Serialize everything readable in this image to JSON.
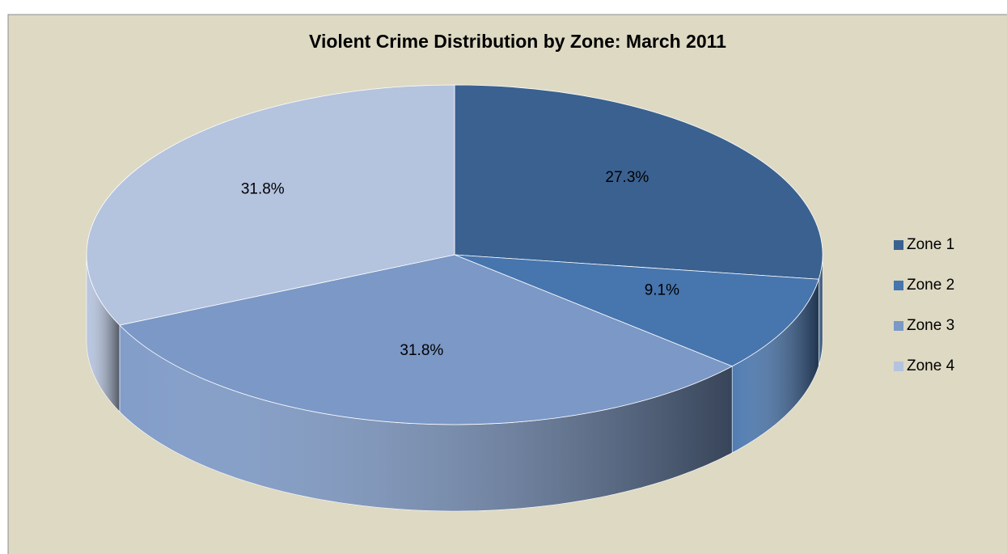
{
  "chart_data": {
    "type": "pie",
    "title": "Violent Crime Distribution by Zone:  March 2011",
    "categories": [
      "Zone 1",
      "Zone 2",
      "Zone 3",
      "Zone 4"
    ],
    "values": [
      27.3,
      9.1,
      31.8,
      31.8
    ],
    "value_labels": [
      "27.3%",
      "9.1%",
      "31.8%",
      "31.8%"
    ],
    "colors": [
      "#3a6190",
      "#4775ae",
      "#7b98c6",
      "#b4c3de"
    ],
    "legend": "right"
  }
}
